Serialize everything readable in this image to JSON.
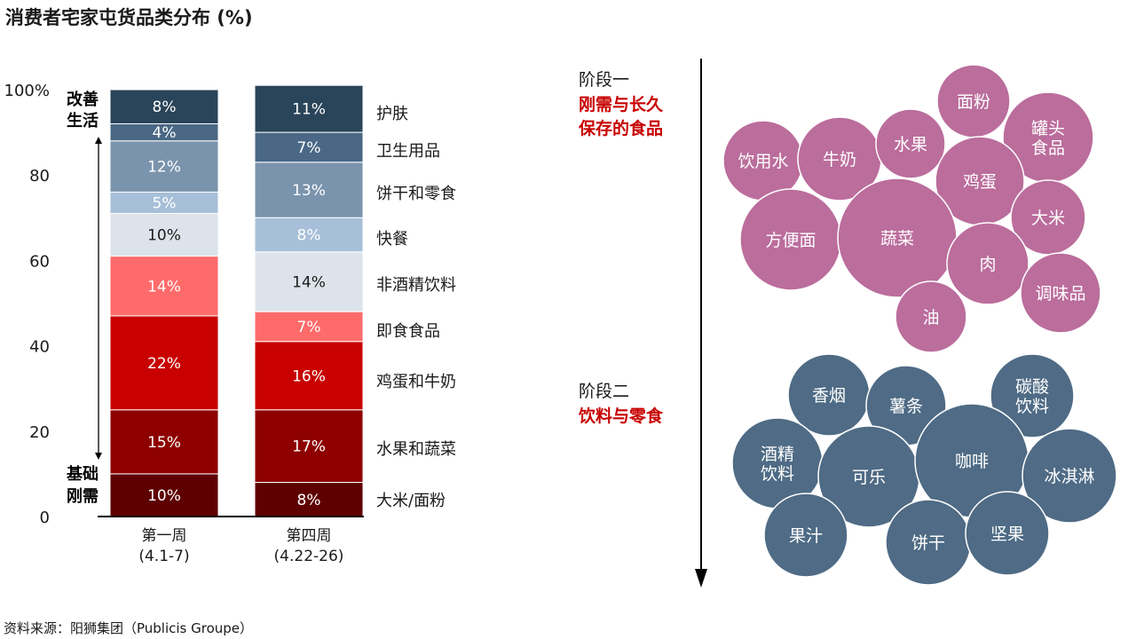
{
  "title": "消费者宅家屯货品类分布 (%)",
  "source": "资料来源：阳狮集团（Publicis Groupe）",
  "annotations": {
    "top_label": [
      "改善",
      "生活"
    ],
    "bottom_label": [
      "基础",
      "刚需"
    ]
  },
  "colors": {
    "categories": [
      "#5f0000",
      "#8e0000",
      "#c80000",
      "#ff6b6b",
      "#dde3ea",
      "#a7bfd8",
      "#7b94ad",
      "#4a6886",
      "#2a4459"
    ],
    "bubbles_stage1": "#bb6d9c",
    "bubbles_stage2": "#4f6b85"
  },
  "chart_data": [
    {
      "type": "bar",
      "stacked": true,
      "ylim": [
        0,
        100
      ],
      "yticks": [
        "0",
        "20",
        "40",
        "60",
        "80",
        "100%"
      ],
      "categories": [
        {
          "line1": "第一周",
          "line2": "(4.1-7)"
        },
        {
          "line1": "第四周",
          "line2": "(4.22-26)"
        }
      ],
      "series": [
        {
          "name": "大米/面粉",
          "values": [
            10,
            8
          ],
          "labels": [
            "10%",
            "8%"
          ]
        },
        {
          "name": "水果和蔬菜",
          "values": [
            15,
            17
          ],
          "labels": [
            "15%",
            "17%"
          ]
        },
        {
          "name": "鸡蛋和牛奶",
          "values": [
            22,
            16
          ],
          "labels": [
            "22%",
            "16%"
          ]
        },
        {
          "name": "即食食品",
          "values": [
            14,
            7
          ],
          "labels": [
            "14%",
            "7%"
          ]
        },
        {
          "name": "非酒精饮料",
          "values": [
            10,
            14
          ],
          "labels": [
            "10%",
            "14%"
          ]
        },
        {
          "name": "快餐",
          "values": [
            5,
            8
          ],
          "labels": [
            "5%",
            "8%"
          ]
        },
        {
          "name": "饼干和零食",
          "values": [
            12,
            13
          ],
          "labels": [
            "12%",
            "13%"
          ]
        },
        {
          "name": "卫生用品",
          "values": [
            4,
            7
          ],
          "labels": [
            "4%",
            "7%"
          ]
        },
        {
          "name": "护肤",
          "values": [
            8,
            11
          ],
          "labels": [
            "8%",
            "11%"
          ]
        }
      ]
    },
    {
      "type": "bubble",
      "groups": [
        {
          "stage": "阶段一",
          "subtitle": [
            "刚需与长久",
            "保存的食品"
          ],
          "items": [
            "饮用水",
            "牛奶",
            "水果",
            "面粉",
            "罐头|食品",
            "鸡蛋",
            "大米",
            "方便面",
            "蔬菜",
            "肉",
            "调味品",
            "油"
          ]
        },
        {
          "stage": "阶段二",
          "subtitle": [
            "饮料与零食"
          ],
          "items": [
            "香烟",
            "薯条",
            "碳酸|饮料",
            "酒精|饮料",
            "可乐",
            "咖啡",
            "冰淇淋",
            "果汁",
            "饼干",
            "坚果"
          ]
        }
      ]
    }
  ]
}
